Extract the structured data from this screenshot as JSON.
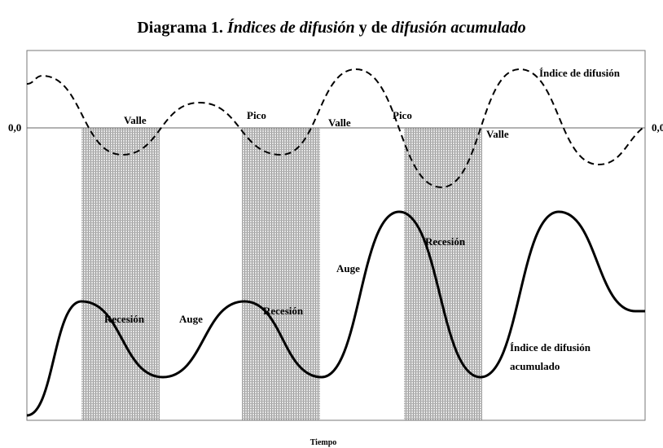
{
  "title": {
    "parts": [
      "Diagrama 1. ",
      "Índices de difusión",
      " y de ",
      "difusión acumulado"
    ]
  },
  "axis": {
    "zero_left": "0,0",
    "zero_right": "0,0",
    "x_label": "Tiempo"
  },
  "annotations": {
    "turning_points": [
      "Valle",
      "Pico",
      "Valle",
      "Pico",
      "Valle"
    ],
    "phases": [
      "Recesión",
      "Auge",
      "Recesión",
      "Auge",
      "Recesión"
    ],
    "diffusion_label": "Índice de difusión",
    "cumulative_label": [
      "Índice de difusión",
      "acumulado"
    ]
  }
}
